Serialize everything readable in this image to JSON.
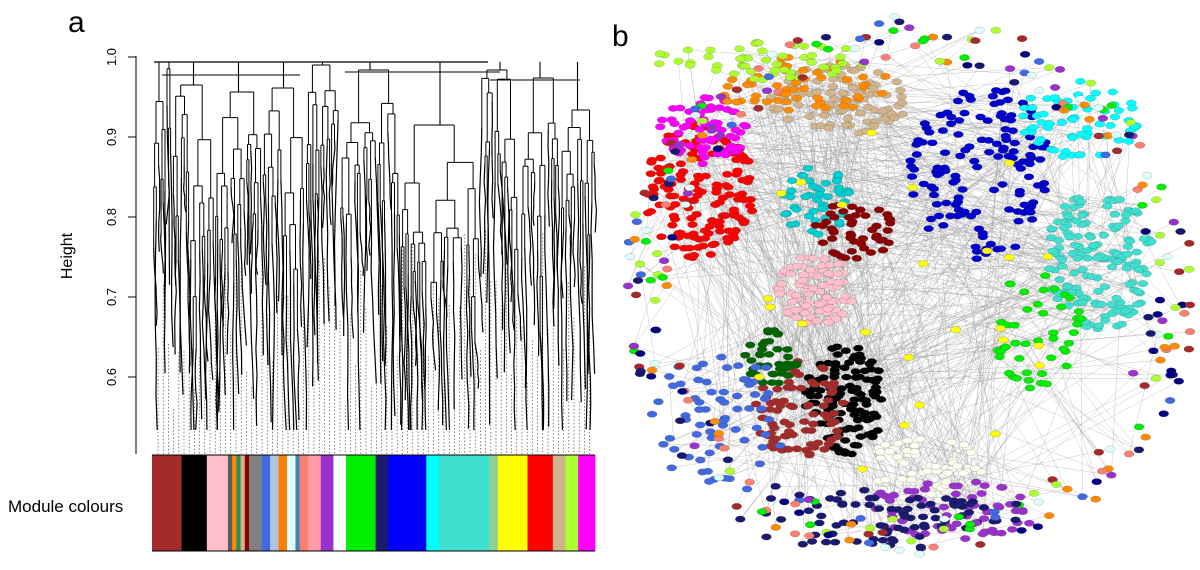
{
  "panel_a": {
    "label": "a",
    "ylabel": "Height",
    "yticks": [
      "1.0",
      "0.9",
      "0.8",
      "0.7",
      "0.6"
    ],
    "module_colors_label": "Module colours",
    "module_colors": [
      {
        "color": "#a52a2a",
        "weight": 7
      },
      {
        "color": "#000000",
        "weight": 6
      },
      {
        "color": "#ffc0cb",
        "weight": 5
      },
      {
        "color": "#5c5c5c",
        "weight": 1
      },
      {
        "color": "#ff8c00",
        "weight": 1
      },
      {
        "color": "#2e8b57",
        "weight": 1
      },
      {
        "color": "#d2b48c",
        "weight": 1
      },
      {
        "color": "#8b0000",
        "weight": 1
      },
      {
        "color": "#808080",
        "weight": 3
      },
      {
        "color": "#4169e1",
        "weight": 2
      },
      {
        "color": "#b0c4de",
        "weight": 2
      },
      {
        "color": "#ff8000",
        "weight": 2
      },
      {
        "color": "#e0ffff",
        "weight": 2
      },
      {
        "color": "#4682b4",
        "weight": 1
      },
      {
        "color": "#fa8072",
        "weight": 2
      },
      {
        "color": "#ff9aa8",
        "weight": 3
      },
      {
        "color": "#9932cc",
        "weight": 3
      },
      {
        "color": "#ffffff",
        "weight": 3
      },
      {
        "color": "#00ee00",
        "weight": 7
      },
      {
        "color": "#191970",
        "weight": 3
      },
      {
        "color": "#0000ff",
        "weight": 9
      },
      {
        "color": "#00ffff",
        "weight": 3
      },
      {
        "color": "#40e0d0",
        "weight": 12
      },
      {
        "color": "#8fd38f",
        "weight": 2
      },
      {
        "color": "#ffff00",
        "weight": 7
      },
      {
        "color": "#ff0000",
        "weight": 6
      },
      {
        "color": "#d2b48c",
        "weight": 3
      },
      {
        "color": "#adff2f",
        "weight": 3
      },
      {
        "color": "#ff00ff",
        "weight": 4
      }
    ]
  },
  "panel_b": {
    "label": "b",
    "module_clusters": [
      {
        "color": "#ff0000"
      },
      {
        "color": "#ff00ff"
      },
      {
        "color": "#d2b48c"
      },
      {
        "color": "#00ced1"
      },
      {
        "color": "#0000cd"
      },
      {
        "color": "#40e0d0"
      },
      {
        "color": "#00ffff"
      },
      {
        "color": "#ffc0cb"
      },
      {
        "color": "#8b0000"
      },
      {
        "color": "#000000"
      },
      {
        "color": "#a52a2a"
      },
      {
        "color": "#006400"
      },
      {
        "color": "#fffff0"
      },
      {
        "color": "#9932cc"
      },
      {
        "color": "#191970"
      },
      {
        "color": "#ff8c00"
      },
      {
        "color": "#adff2f"
      },
      {
        "color": "#00ee00"
      },
      {
        "color": "#4169e1"
      },
      {
        "color": "#ffff00"
      }
    ]
  }
}
